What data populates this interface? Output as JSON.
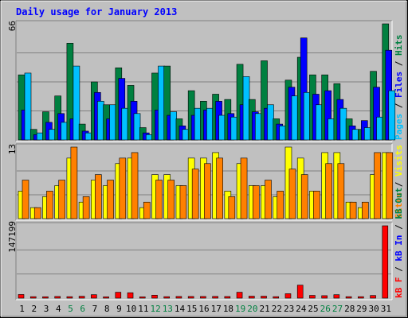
{
  "chart_data": {
    "type": "bar",
    "title": "Daily usage for January 2013",
    "categories": [
      "1",
      "2",
      "3",
      "4",
      "5",
      "6",
      "7",
      "8",
      "9",
      "10",
      "11",
      "12",
      "13",
      "14",
      "15",
      "16",
      "17",
      "18",
      "19",
      "20",
      "21",
      "22",
      "23",
      "24",
      "25",
      "26",
      "27",
      "28",
      "29",
      "30",
      "31"
    ],
    "weekend_days": [
      "5",
      "6",
      "12",
      "13",
      "19",
      "20",
      "26",
      "27"
    ],
    "panels": [
      {
        "id": "hits-files-pages",
        "max_label": "66",
        "ylim": [
          0,
          66
        ],
        "legend": [
          "Pages",
          "Files",
          "Hits"
        ],
        "legend_colors": [
          "#00c0ff",
          "#0000ff",
          "#008040"
        ],
        "series": [
          {
            "name": "Hits",
            "color": "#008040",
            "values": [
              37,
              6,
              16,
              25,
              55,
              9,
              33,
              20,
              41,
              31,
              7,
              38,
              42,
              12,
              28,
              22,
              26,
              23,
              43,
              23,
              45,
              12,
              34,
              47,
              37,
              37,
              32,
              12,
              6,
              39,
              66
            ]
          },
          {
            "name": "Files",
            "color": "#0000ff",
            "values": [
              17,
              3,
              10,
              15,
              12,
              5,
              27,
              12,
              35,
              22,
              4,
              17,
              14,
              8,
              14,
              17,
              22,
              15,
              20,
              16,
              18,
              9,
              30,
              58,
              26,
              28,
              23,
              8,
              11,
              30,
              51
            ]
          },
          {
            "name": "Pages",
            "color": "#00c0ff",
            "values": [
              38,
              4,
              6,
              10,
              42,
              4,
              22,
              20,
              18,
              15,
              3,
              42,
              16,
              6,
              18,
              18,
              14,
              13,
              36,
              15,
              20,
              8,
              25,
              27,
              20,
              12,
              18,
              6,
              7,
              13,
              28
            ]
          }
        ]
      },
      {
        "id": "visits-sites",
        "max_label": "13",
        "ylim": [
          0,
          13
        ],
        "legend": [
          "Sites",
          "Visits"
        ],
        "legend_colors": [
          "#ff8000",
          "#ffff00"
        ],
        "series": [
          {
            "name": "Visits",
            "color": "#ffff00",
            "values": [
              5,
              2,
              4,
              6,
              11,
              3,
              7,
              6,
              10,
              11,
              2,
              8,
              8,
              6,
              11,
              11,
              12,
              5,
              10,
              6,
              6,
              4,
              13,
              11,
              5,
              12,
              12,
              3,
              2,
              8,
              12
            ]
          },
          {
            "name": "Sites",
            "color": "#ff8000",
            "values": [
              7,
              2,
              5,
              7,
              13,
              4,
              8,
              7,
              11,
              12,
              3,
              7,
              7,
              6,
              9,
              10,
              11,
              4,
              11,
              6,
              7,
              5,
              9,
              8,
              5,
              10,
              10,
              3,
              3,
              12,
              12
            ]
          }
        ]
      },
      {
        "id": "kbytes",
        "max_label": "147199",
        "ylim": [
          0,
          147199
        ],
        "legend": [
          "kB F",
          "kB In",
          "kB Out"
        ],
        "legend_colors": [
          "#ff0000",
          "#0000ff",
          "#008040"
        ],
        "series": [
          {
            "name": "kB F",
            "color": "#ff0000",
            "values": [
              7400,
              3000,
              2800,
              3400,
              3000,
              3800,
              7000,
              2600,
              12000,
              11000,
              2600,
              6000,
              3000,
              3400,
              3400,
              3400,
              3500,
              3300,
              12000,
              4000,
              4000,
              3000,
              9000,
              26500,
              5600,
              5000,
              7000,
              3000,
              3000,
              5400,
              147199
            ]
          }
        ]
      }
    ]
  }
}
